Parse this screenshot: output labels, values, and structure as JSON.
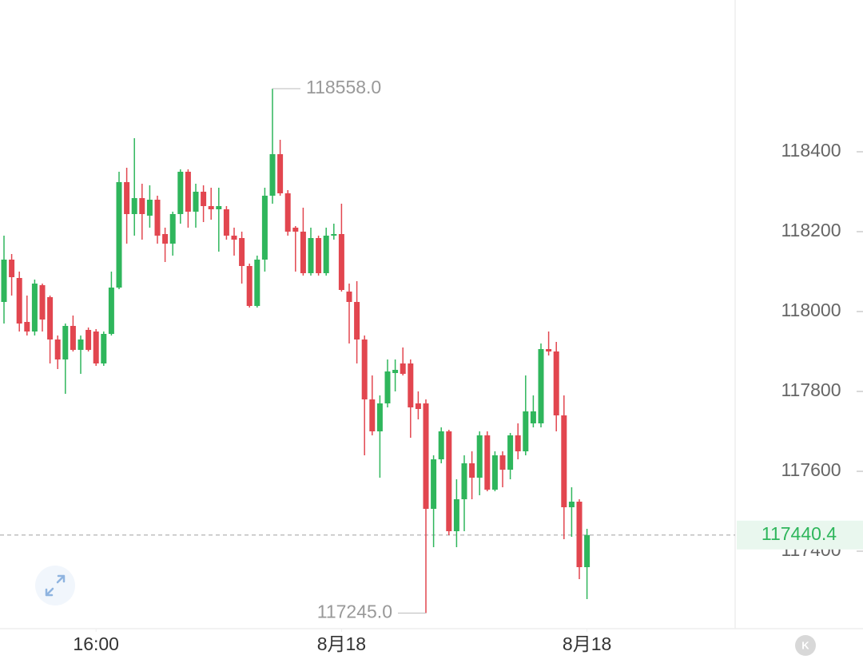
{
  "chart_data": {
    "type": "candlestick",
    "up_color": "#2fb65c",
    "down_color": "#e2464f",
    "open": [
      118024,
      118130,
      118084,
      117974,
      117950,
      118066,
      118036,
      117930,
      117880,
      117964,
      117904,
      117954,
      117950,
      117870,
      117944,
      118060,
      118324,
      118244,
      118284,
      118240,
      118280,
      118194,
      118170,
      118244,
      118350,
      118250,
      118300,
      118264,
      118256,
      118256,
      118190,
      118184,
      118114,
      118014,
      118130,
      118290,
      118394,
      118296,
      118210,
      118200,
      118096,
      118184,
      118096,
      118190,
      118194,
      118050,
      118024,
      117930,
      117780,
      117700,
      117770,
      117846,
      117870,
      117870,
      117770,
      117770,
      117506,
      117630,
      117700,
      117450,
      117530,
      117620,
      117584,
      117690,
      117554,
      117640,
      117604,
      117690,
      117650,
      117720,
      117720,
      117906,
      117900,
      117740,
      117510,
      117524,
      117360
    ],
    "high": [
      118190,
      118144,
      118100,
      118040,
      118080,
      118070,
      118040,
      117940,
      117970,
      117990,
      117940,
      117960,
      117956,
      117950,
      118100,
      118350,
      118360,
      118434,
      118320,
      118316,
      118290,
      118210,
      118250,
      118356,
      118356,
      118320,
      118316,
      118310,
      118310,
      118264,
      118210,
      118200,
      118120,
      118140,
      118310,
      118558,
      118430,
      118304,
      118214,
      118260,
      118210,
      118190,
      118210,
      118220,
      118270,
      118070,
      118076,
      117940,
      117840,
      117790,
      117880,
      117880,
      117910,
      117880,
      117800,
      117780,
      117640,
      117710,
      117704,
      117580,
      117640,
      117650,
      117700,
      117700,
      117650,
      117650,
      117696,
      117720,
      117840,
      117790,
      117920,
      117950,
      117924,
      117790,
      117560,
      117530,
      117456
    ],
    "low": [
      117970,
      118040,
      117950,
      117940,
      117940,
      117950,
      117870,
      117856,
      117794,
      117900,
      117844,
      117900,
      117864,
      117864,
      117940,
      118056,
      118170,
      118190,
      118180,
      118210,
      118170,
      118124,
      118140,
      118220,
      118210,
      118210,
      118224,
      118230,
      118150,
      118180,
      118140,
      118070,
      118010,
      118010,
      118100,
      118270,
      118290,
      118190,
      118100,
      118090,
      118090,
      118090,
      118090,
      118180,
      118050,
      117920,
      117870,
      117640,
      117690,
      117584,
      117760,
      117800,
      117840,
      117684,
      117730,
      117245,
      117410,
      117620,
      117440,
      117410,
      117450,
      117530,
      117540,
      117550,
      117550,
      117560,
      117580,
      117630,
      117640,
      117710,
      117710,
      117890,
      117700,
      117430,
      117436,
      117330,
      117280
    ],
    "close": [
      118130,
      118086,
      117970,
      117950,
      118070,
      117980,
      117930,
      117880,
      117964,
      117904,
      117930,
      117904,
      117870,
      117944,
      118060,
      118324,
      118244,
      118284,
      118244,
      118280,
      118190,
      118170,
      118244,
      118350,
      118250,
      118300,
      118264,
      118256,
      118264,
      118190,
      118180,
      118114,
      118014,
      118130,
      118290,
      118394,
      118296,
      118200,
      118200,
      118096,
      118184,
      118096,
      118190,
      118194,
      118054,
      118024,
      117930,
      117780,
      117700,
      117770,
      117850,
      117854,
      117844,
      117760,
      117756,
      117506,
      117630,
      117700,
      117450,
      117530,
      117620,
      117584,
      117690,
      117554,
      117640,
      117604,
      117690,
      117650,
      117750,
      117750,
      117906,
      117900,
      117740,
      117510,
      117524,
      117360,
      117440.4
    ],
    "ylim": [
      117206,
      118780
    ],
    "yticks": [
      117400,
      117600,
      117800,
      118000,
      118200,
      118400
    ],
    "xticks": [
      {
        "value": 12,
        "label": "16:00"
      },
      {
        "value": 44,
        "label": "8月18"
      },
      {
        "value": 76,
        "label": "8月18"
      }
    ],
    "max_label": "118558.0",
    "min_label": "117245.0",
    "last_price": 117440.4
  }
}
